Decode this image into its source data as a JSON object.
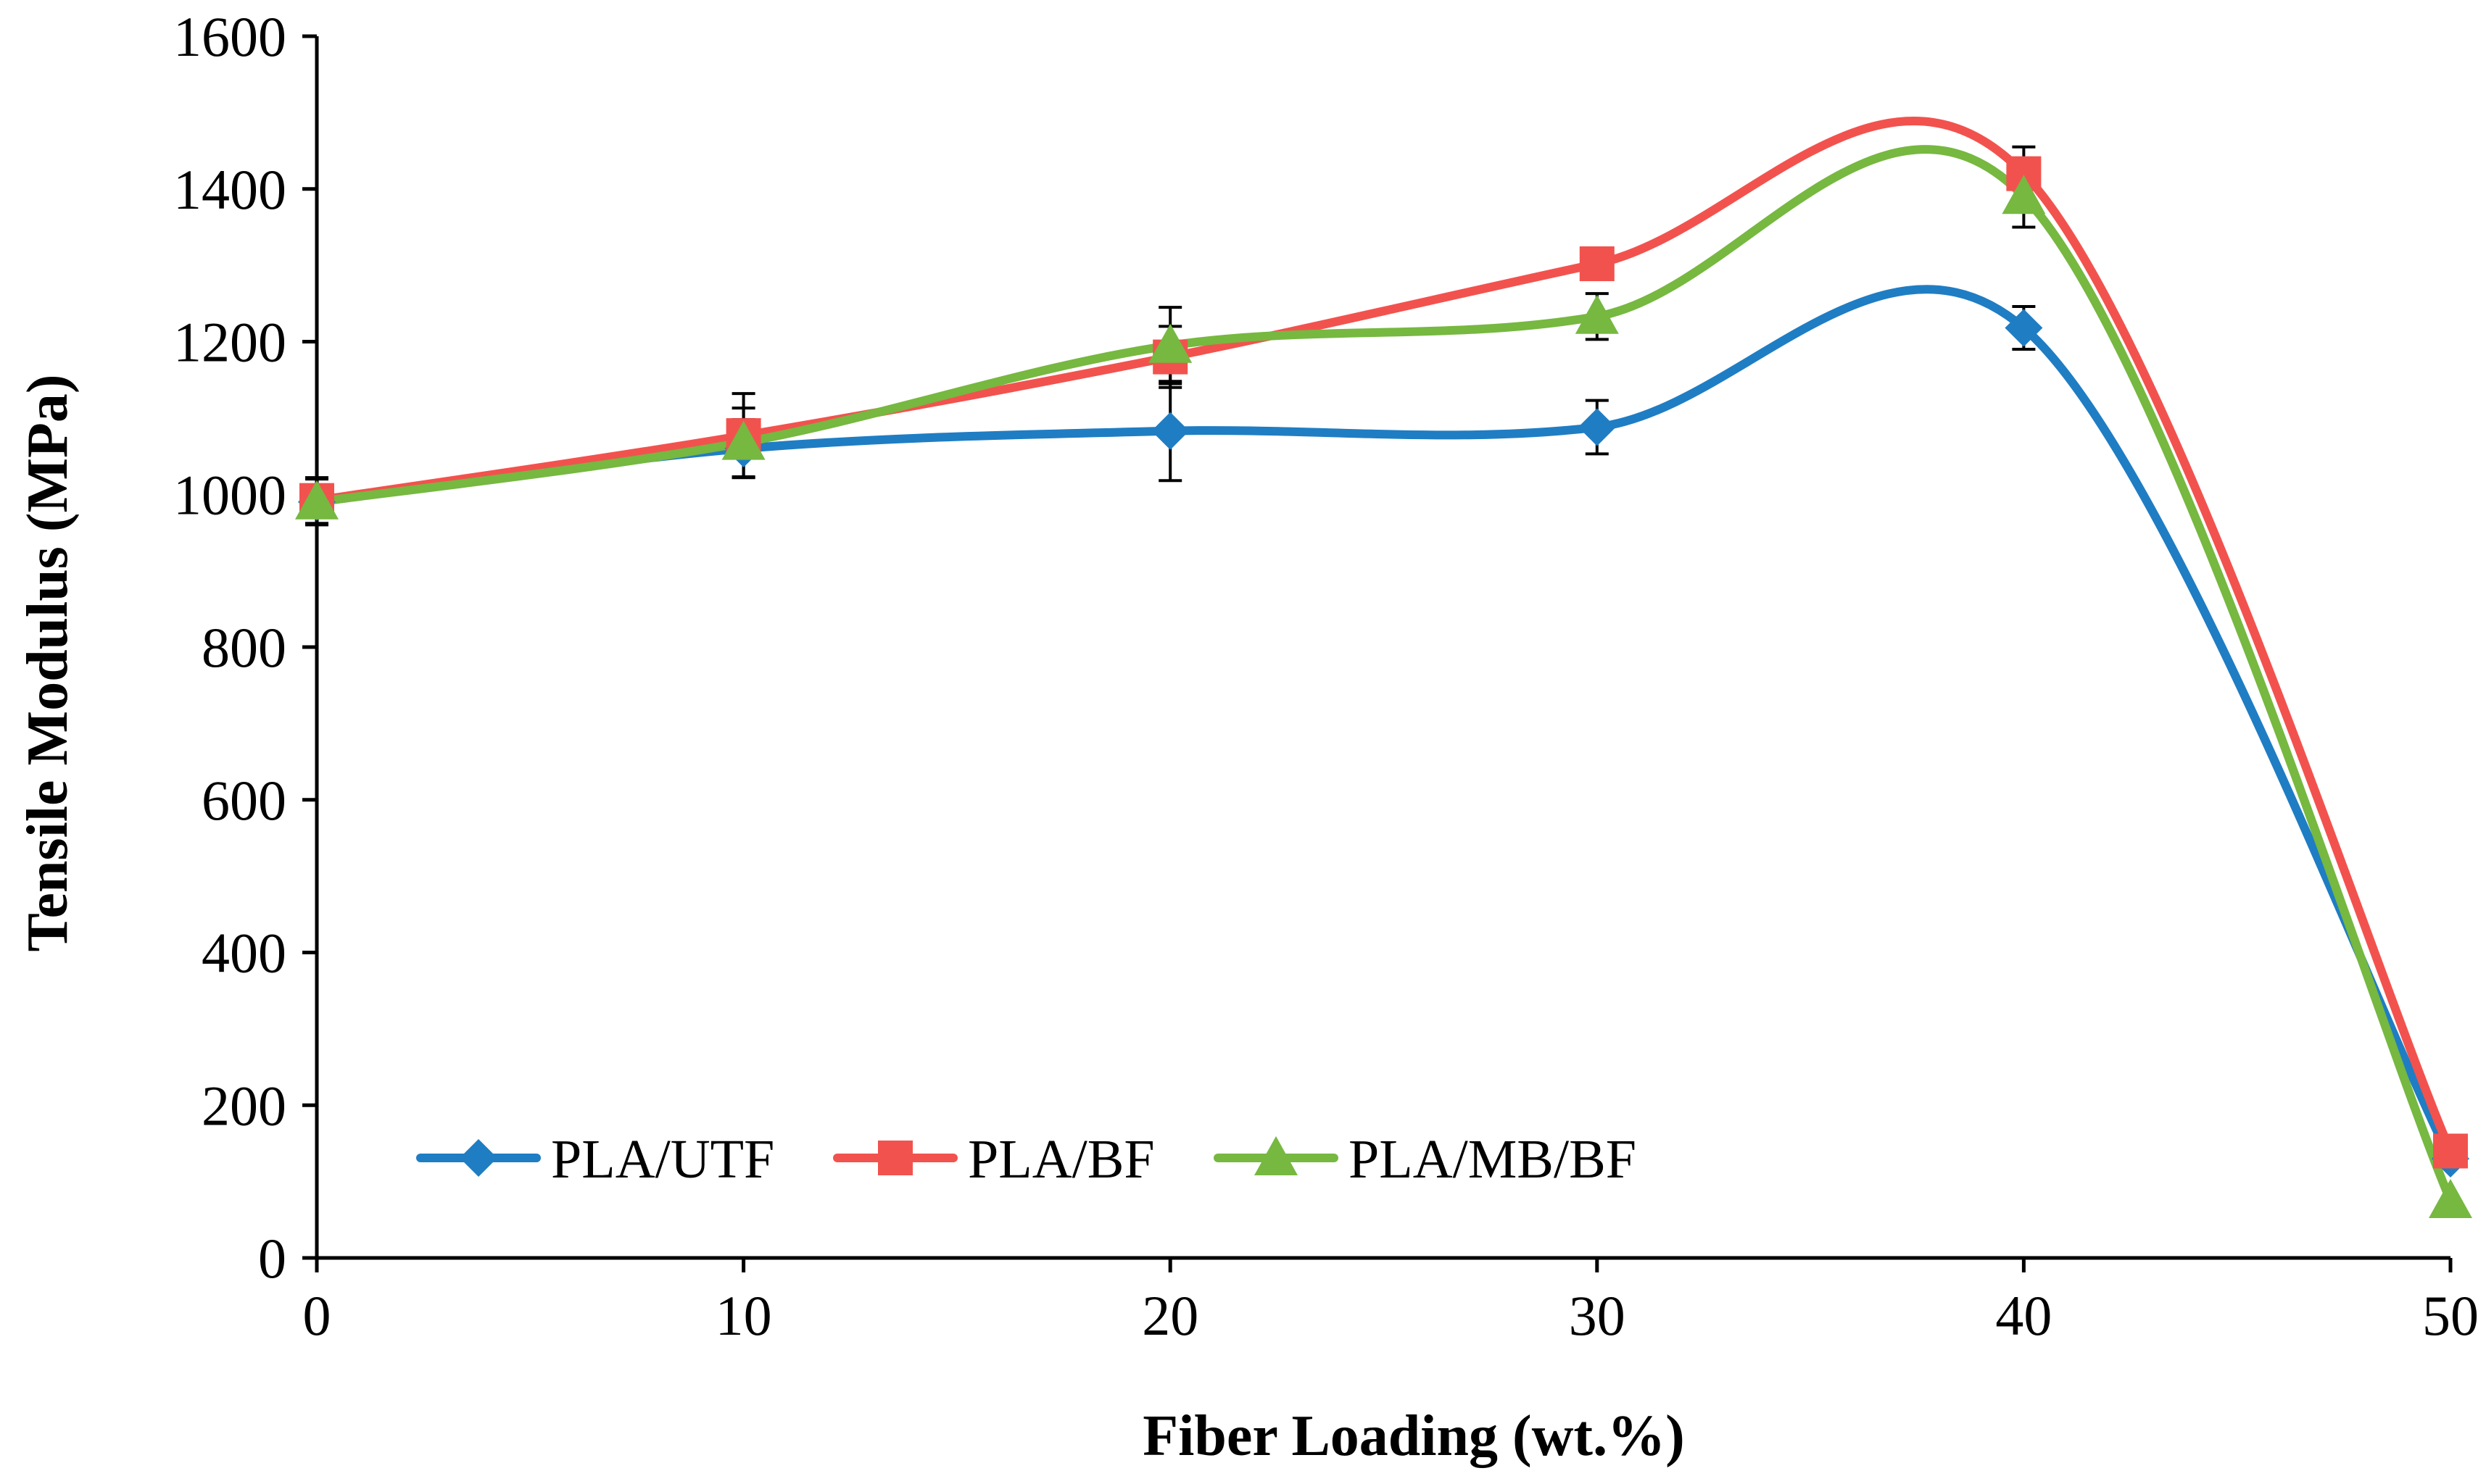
{
  "chart_data": {
    "type": "line",
    "title": "",
    "xlabel": "Fiber Loading (wt.%)",
    "ylabel": "Tensile Modulus (MPa)",
    "xlim": [
      0,
      50
    ],
    "ylim": [
      0,
      1600
    ],
    "x_ticks": [
      "0",
      "10",
      "20",
      "30",
      "40",
      "50"
    ],
    "y_ticks": [
      "0",
      "200",
      "400",
      "600",
      "800",
      "1000",
      "1200",
      "1400",
      "1600"
    ],
    "grid": false,
    "legend_position": "bottom-left",
    "x": [
      0,
      10,
      20,
      30,
      40,
      50
    ],
    "series": [
      {
        "name": "PLA/UTF",
        "color": "#1F7DC3",
        "marker": "diamond",
        "values": [
          990,
          1060,
          1083,
          1088,
          1218,
          130
        ],
        "errors": [
          30,
          38,
          65,
          35,
          28,
          0
        ]
      },
      {
        "name": "PLA/BF",
        "color": "#F2524E",
        "marker": "square",
        "values": [
          992,
          1077,
          1180,
          1302,
          1420,
          140
        ],
        "errors": [
          30,
          55,
          40,
          0,
          35,
          0
        ]
      },
      {
        "name": "PLA/MB/BF",
        "color": "#76B840",
        "marker": "triangle",
        "values": [
          990,
          1068,
          1195,
          1233,
          1390,
          75
        ],
        "errors": [
          0,
          45,
          50,
          30,
          40,
          0
        ]
      }
    ]
  }
}
